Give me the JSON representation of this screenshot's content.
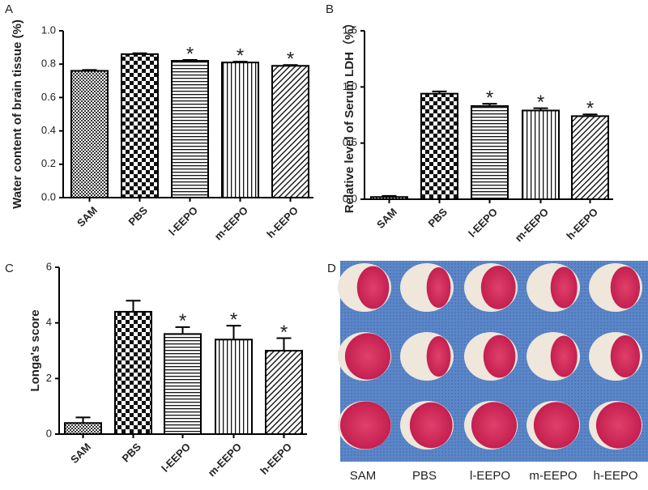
{
  "chart_data": [
    {
      "type": "bar",
      "panel_label": "A",
      "ylabel": "Water content of brain tissue (%)",
      "categories": [
        "SAM",
        "PBS",
        "l-EEPO",
        "m-EEPO",
        "h-EEPO"
      ],
      "values": [
        0.76,
        0.86,
        0.82,
        0.81,
        0.79
      ],
      "errors": [
        0.005,
        0.005,
        0.005,
        0.005,
        0.005
      ],
      "color": "#000000",
      "ylim": [
        0,
        1
      ],
      "yticks": [
        {
          "value": 0,
          "label": "0.0"
        },
        0.2,
        0.4,
        0.6,
        0.8,
        {
          "value": 1,
          "label": "1.0"
        }
      ],
      "annotations": [
        {
          "category": "l-EEPO",
          "text": "*"
        },
        {
          "category": "m-EEPO",
          "text": "*"
        },
        {
          "category": "h-EEPO",
          "text": "*"
        }
      ]
    },
    {
      "type": "bar",
      "panel_label": "B",
      "ylabel": "Relative level of Serum LDH（%）",
      "categories": [
        "SAM",
        "PBS",
        "l-EEPO",
        "m-EEPO",
        "h-EEPO"
      ],
      "values": [
        0.02,
        0.94,
        0.83,
        0.79,
        0.74
      ],
      "errors": [
        0.01,
        0.02,
        0.02,
        0.02,
        0.015
      ],
      "color": "#000000",
      "ylim": [
        0,
        1.5
      ],
      "yticks": [
        {
          "value": 0,
          "label": "0.0"
        },
        0.5,
        {
          "value": 1,
          "label": "1.0"
        },
        1.5
      ],
      "annotations": [
        {
          "category": "l-EEPO",
          "text": "*"
        },
        {
          "category": "m-EEPO",
          "text": "*"
        },
        {
          "category": "h-EEPO",
          "text": "*"
        }
      ]
    },
    {
      "type": "bar",
      "panel_label": "C",
      "ylabel": "Longa's score",
      "categories": [
        "SAM",
        "PBS",
        "l-EEPO",
        "m-EEPO",
        "h-EEPO"
      ],
      "values": [
        0.4,
        4.4,
        3.6,
        3.4,
        3.0
      ],
      "errors": [
        0.2,
        0.4,
        0.25,
        0.5,
        0.45
      ],
      "color": "#000000",
      "ylim": [
        0,
        6
      ],
      "yticks": [
        0,
        2,
        4,
        6
      ],
      "annotations": [
        {
          "category": "l-EEPO",
          "text": "*"
        },
        {
          "category": "m-EEPO",
          "text": "*"
        },
        {
          "category": "h-EEPO",
          "text": "*"
        }
      ]
    }
  ],
  "photo": {
    "panel_label": "D",
    "labels": [
      "SAM",
      "PBS",
      "l-EEPO",
      "m-EEPO",
      "h-EEPO"
    ]
  }
}
